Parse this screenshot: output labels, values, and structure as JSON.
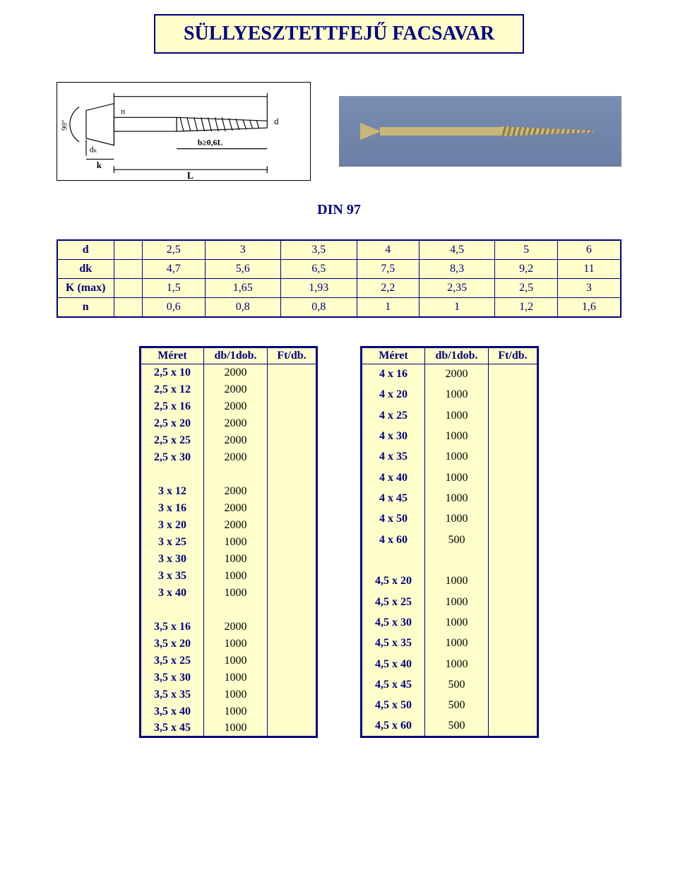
{
  "title": "SÜLLYESZTETTFEJŰ FACSAVAR",
  "din_label": "DIN 97",
  "spec": {
    "headers": [
      "d",
      "dk",
      "K (max)",
      "n"
    ],
    "columns": [
      "2,5",
      "3",
      "3,5",
      "4",
      "4,5",
      "5",
      "6"
    ],
    "rows": [
      [
        "2,5",
        "3",
        "3,5",
        "4",
        "4,5",
        "5",
        "6"
      ],
      [
        "4,7",
        "5,6",
        "6,5",
        "7,5",
        "8,3",
        "9,2",
        "11"
      ],
      [
        "1,5",
        "1,65",
        "1,93",
        "2,2",
        "2,35",
        "2,5",
        "3"
      ],
      [
        "0,6",
        "0,8",
        "0,8",
        "1",
        "1",
        "1,2",
        "1,6"
      ]
    ]
  },
  "table_headers": {
    "meret": "Méret",
    "db": "db/1dob.",
    "ft": "Ft/db."
  },
  "left_rows": [
    {
      "meret": "2,5 x 10",
      "db": "2000"
    },
    {
      "meret": "2,5 x 12",
      "db": "2000"
    },
    {
      "meret": "2,5 x 16",
      "db": "2000"
    },
    {
      "meret": "2,5 x 20",
      "db": "2000"
    },
    {
      "meret": "2,5 x 25",
      "db": "2000"
    },
    {
      "meret": "2,5 x 30",
      "db": "2000"
    },
    {
      "meret": "",
      "db": ""
    },
    {
      "meret": "3 x 12",
      "db": "2000"
    },
    {
      "meret": "3 x 16",
      "db": "2000"
    },
    {
      "meret": "3 x 20",
      "db": "2000"
    },
    {
      "meret": "3 x 25",
      "db": "1000"
    },
    {
      "meret": "3 x 30",
      "db": "1000"
    },
    {
      "meret": "3 x 35",
      "db": "1000"
    },
    {
      "meret": "3 x 40",
      "db": "1000"
    },
    {
      "meret": "",
      "db": ""
    },
    {
      "meret": "3,5 x 16",
      "db": "2000"
    },
    {
      "meret": "3,5 x 20",
      "db": "1000"
    },
    {
      "meret": "3,5 x 25",
      "db": "1000"
    },
    {
      "meret": "3,5 x 30",
      "db": "1000"
    },
    {
      "meret": "3,5 x 35",
      "db": "1000"
    },
    {
      "meret": "3,5 x 40",
      "db": "1000"
    },
    {
      "meret": "3,5 x 45",
      "db": "1000"
    }
  ],
  "right_rows": [
    {
      "meret": "4 x 16",
      "db": "2000"
    },
    {
      "meret": "4 x 20",
      "db": "1000"
    },
    {
      "meret": "4 x 25",
      "db": "1000"
    },
    {
      "meret": "4 x 30",
      "db": "1000"
    },
    {
      "meret": "4 x 35",
      "db": "1000"
    },
    {
      "meret": "4 x 40",
      "db": "1000"
    },
    {
      "meret": "4 x 45",
      "db": "1000"
    },
    {
      "meret": "4 x 50",
      "db": "1000"
    },
    {
      "meret": "4 x 60",
      "db": "500"
    },
    {
      "meret": "",
      "db": ""
    },
    {
      "meret": "4,5 x 20",
      "db": "1000"
    },
    {
      "meret": "4,5 x 25",
      "db": "1000"
    },
    {
      "meret": "4,5 x 30",
      "db": "1000"
    },
    {
      "meret": "4,5 x 35",
      "db": "1000"
    },
    {
      "meret": "4,5 x 40",
      "db": "1000"
    },
    {
      "meret": "4,5 x 45",
      "db": "500"
    },
    {
      "meret": "4,5 x 50",
      "db": "500"
    },
    {
      "meret": "4,5 x 60",
      "db": "500"
    }
  ],
  "colors": {
    "border": "#000080",
    "cell_bg": "#ffffcc",
    "text_header": "#000080",
    "text_value": "#000000"
  }
}
